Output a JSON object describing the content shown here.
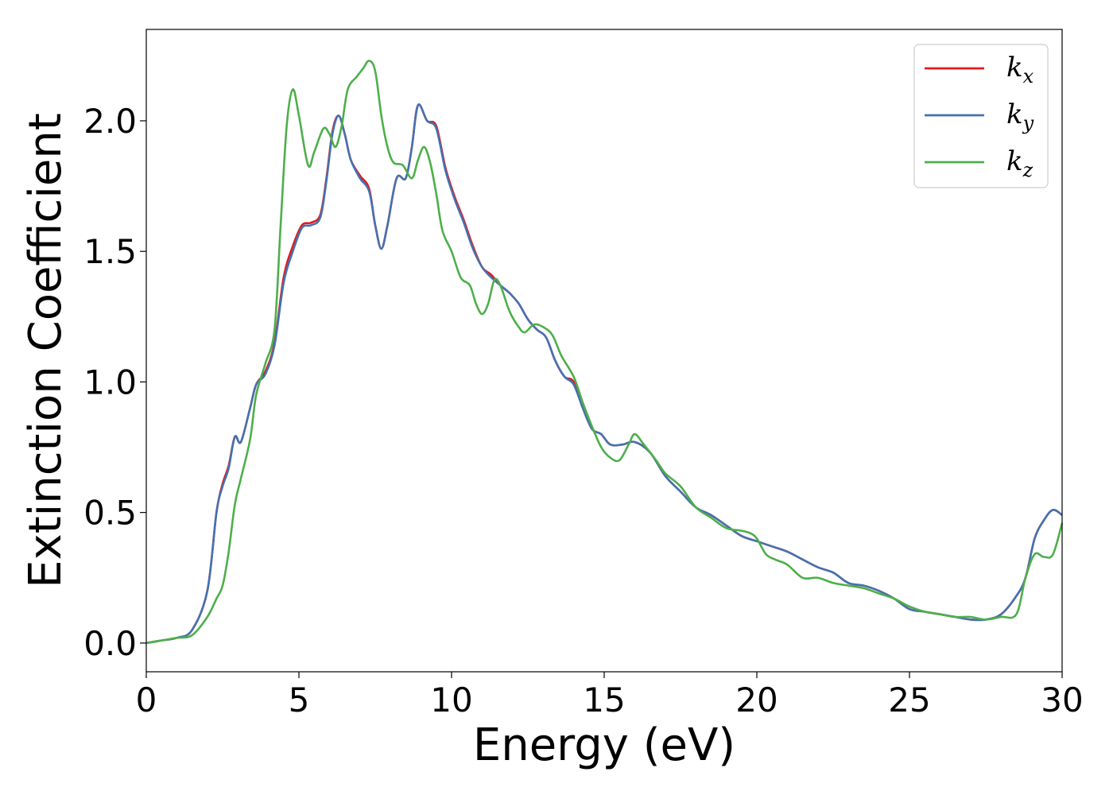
{
  "chart_data": {
    "type": "line",
    "xlabel": "Energy (eV)",
    "ylabel": "Extinction Coefficient",
    "xlim": [
      0,
      30
    ],
    "ylim": [
      -0.11,
      2.35
    ],
    "xticks": [
      0,
      5,
      10,
      15,
      20,
      25,
      30
    ],
    "yticks": [
      0.0,
      0.5,
      1.0,
      1.5,
      2.0
    ],
    "xtick_labels": [
      "0",
      "5",
      "10",
      "15",
      "20",
      "25",
      "30"
    ],
    "ytick_labels": [
      "0.0",
      "0.5",
      "1.0",
      "1.5",
      "2.0"
    ],
    "grid": false,
    "legend_position": "top-right",
    "series": [
      {
        "name": "k_x",
        "label_base": "k",
        "label_sub": "x",
        "color": "#e41a1c",
        "points": [
          [
            0,
            0
          ],
          [
            0.5,
            0.01
          ],
          [
            1,
            0.02
          ],
          [
            1.5,
            0.05
          ],
          [
            2,
            0.2
          ],
          [
            2.3,
            0.5
          ],
          [
            2.5,
            0.61
          ],
          [
            2.7,
            0.68
          ],
          [
            2.9,
            0.79
          ],
          [
            3.1,
            0.77
          ],
          [
            3.4,
            0.9
          ],
          [
            3.6,
            0.99
          ],
          [
            3.9,
            1.04
          ],
          [
            4.2,
            1.15
          ],
          [
            4.5,
            1.4
          ],
          [
            4.8,
            1.52
          ],
          [
            5.1,
            1.6
          ],
          [
            5.4,
            1.61
          ],
          [
            5.7,
            1.64
          ],
          [
            5.9,
            1.78
          ],
          [
            6.1,
            1.96
          ],
          [
            6.3,
            2.02
          ],
          [
            6.5,
            1.95
          ],
          [
            6.7,
            1.85
          ],
          [
            7,
            1.79
          ],
          [
            7.3,
            1.74
          ],
          [
            7.5,
            1.6
          ],
          [
            7.7,
            1.51
          ],
          [
            7.9,
            1.6
          ],
          [
            8.2,
            1.78
          ],
          [
            8.5,
            1.78
          ],
          [
            8.7,
            1.9
          ],
          [
            8.9,
            2.06
          ],
          [
            9.2,
            2.0
          ],
          [
            9.5,
            1.98
          ],
          [
            9.8,
            1.82
          ],
          [
            10.1,
            1.71
          ],
          [
            10.4,
            1.62
          ],
          [
            10.7,
            1.52
          ],
          [
            11,
            1.44
          ],
          [
            11.3,
            1.41
          ],
          [
            11.6,
            1.37
          ],
          [
            11.9,
            1.34
          ],
          [
            12.2,
            1.3
          ],
          [
            12.5,
            1.24
          ],
          [
            12.8,
            1.2
          ],
          [
            13.1,
            1.17
          ],
          [
            13.4,
            1.08
          ],
          [
            13.7,
            1.02
          ],
          [
            14,
            1.0
          ],
          [
            14.3,
            0.9
          ],
          [
            14.6,
            0.82
          ],
          [
            14.9,
            0.8
          ],
          [
            15.2,
            0.76
          ],
          [
            15.6,
            0.76
          ],
          [
            16,
            0.77
          ],
          [
            16.5,
            0.73
          ],
          [
            17,
            0.64
          ],
          [
            17.5,
            0.58
          ],
          [
            18,
            0.52
          ],
          [
            18.5,
            0.49
          ],
          [
            19,
            0.45
          ],
          [
            19.5,
            0.41
          ],
          [
            20,
            0.39
          ],
          [
            20.5,
            0.37
          ],
          [
            21,
            0.35
          ],
          [
            21.5,
            0.32
          ],
          [
            22,
            0.29
          ],
          [
            22.5,
            0.27
          ],
          [
            23,
            0.23
          ],
          [
            23.5,
            0.22
          ],
          [
            24,
            0.2
          ],
          [
            24.5,
            0.17
          ],
          [
            25,
            0.13
          ],
          [
            25.5,
            0.12
          ],
          [
            26,
            0.11
          ],
          [
            26.5,
            0.1
          ],
          [
            27,
            0.09
          ],
          [
            27.5,
            0.09
          ],
          [
            28,
            0.11
          ],
          [
            28.5,
            0.18
          ],
          [
            28.8,
            0.25
          ],
          [
            29.1,
            0.4
          ],
          [
            29.4,
            0.47
          ],
          [
            29.7,
            0.51
          ],
          [
            30,
            0.49
          ]
        ]
      },
      {
        "name": "k_y",
        "label_base": "k",
        "label_sub": "y",
        "color": "#4472b0",
        "points": [
          [
            0,
            0
          ],
          [
            0.5,
            0.01
          ],
          [
            1,
            0.02
          ],
          [
            1.5,
            0.05
          ],
          [
            2,
            0.2
          ],
          [
            2.3,
            0.5
          ],
          [
            2.5,
            0.6
          ],
          [
            2.7,
            0.67
          ],
          [
            2.9,
            0.79
          ],
          [
            3.1,
            0.77
          ],
          [
            3.4,
            0.9
          ],
          [
            3.6,
            0.99
          ],
          [
            3.9,
            1.03
          ],
          [
            4.2,
            1.14
          ],
          [
            4.5,
            1.38
          ],
          [
            4.8,
            1.5
          ],
          [
            5.1,
            1.59
          ],
          [
            5.4,
            1.6
          ],
          [
            5.7,
            1.63
          ],
          [
            5.9,
            1.77
          ],
          [
            6.1,
            1.95
          ],
          [
            6.3,
            2.02
          ],
          [
            6.5,
            1.95
          ],
          [
            6.7,
            1.85
          ],
          [
            7,
            1.78
          ],
          [
            7.3,
            1.73
          ],
          [
            7.5,
            1.6
          ],
          [
            7.7,
            1.51
          ],
          [
            7.9,
            1.6
          ],
          [
            8.2,
            1.78
          ],
          [
            8.5,
            1.78
          ],
          [
            8.7,
            1.9
          ],
          [
            8.9,
            2.06
          ],
          [
            9.2,
            2.0
          ],
          [
            9.5,
            1.97
          ],
          [
            9.8,
            1.81
          ],
          [
            10.1,
            1.7
          ],
          [
            10.4,
            1.61
          ],
          [
            10.7,
            1.51
          ],
          [
            11,
            1.44
          ],
          [
            11.3,
            1.4
          ],
          [
            11.6,
            1.37
          ],
          [
            11.9,
            1.34
          ],
          [
            12.2,
            1.3
          ],
          [
            12.5,
            1.24
          ],
          [
            12.8,
            1.2
          ],
          [
            13.1,
            1.17
          ],
          [
            13.4,
            1.08
          ],
          [
            13.7,
            1.02
          ],
          [
            14,
            0.99
          ],
          [
            14.3,
            0.9
          ],
          [
            14.6,
            0.82
          ],
          [
            14.9,
            0.8
          ],
          [
            15.2,
            0.76
          ],
          [
            15.6,
            0.76
          ],
          [
            16,
            0.77
          ],
          [
            16.5,
            0.73
          ],
          [
            17,
            0.64
          ],
          [
            17.5,
            0.58
          ],
          [
            18,
            0.52
          ],
          [
            18.5,
            0.49
          ],
          [
            19,
            0.45
          ],
          [
            19.5,
            0.41
          ],
          [
            20,
            0.39
          ],
          [
            20.5,
            0.37
          ],
          [
            21,
            0.35
          ],
          [
            21.5,
            0.32
          ],
          [
            22,
            0.29
          ],
          [
            22.5,
            0.27
          ],
          [
            23,
            0.23
          ],
          [
            23.5,
            0.22
          ],
          [
            24,
            0.2
          ],
          [
            24.5,
            0.17
          ],
          [
            25,
            0.13
          ],
          [
            25.5,
            0.12
          ],
          [
            26,
            0.11
          ],
          [
            26.5,
            0.1
          ],
          [
            27,
            0.09
          ],
          [
            27.5,
            0.09
          ],
          [
            28,
            0.11
          ],
          [
            28.5,
            0.18
          ],
          [
            28.8,
            0.25
          ],
          [
            29.1,
            0.4
          ],
          [
            29.4,
            0.47
          ],
          [
            29.7,
            0.51
          ],
          [
            30,
            0.49
          ]
        ]
      },
      {
        "name": "k_z",
        "label_base": "k",
        "label_sub": "z",
        "color": "#4daf4a",
        "points": [
          [
            0,
            0
          ],
          [
            0.5,
            0.01
          ],
          [
            1,
            0.02
          ],
          [
            1.5,
            0.03
          ],
          [
            2,
            0.1
          ],
          [
            2.3,
            0.17
          ],
          [
            2.5,
            0.22
          ],
          [
            2.7,
            0.35
          ],
          [
            2.9,
            0.53
          ],
          [
            3.1,
            0.63
          ],
          [
            3.4,
            0.78
          ],
          [
            3.6,
            0.95
          ],
          [
            3.9,
            1.07
          ],
          [
            4.2,
            1.2
          ],
          [
            4.4,
            1.6
          ],
          [
            4.6,
            1.98
          ],
          [
            4.8,
            2.12
          ],
          [
            5,
            2.02
          ],
          [
            5.3,
            1.83
          ],
          [
            5.5,
            1.88
          ],
          [
            5.8,
            1.97
          ],
          [
            6,
            1.95
          ],
          [
            6.2,
            1.9
          ],
          [
            6.4,
            1.98
          ],
          [
            6.6,
            2.12
          ],
          [
            6.9,
            2.17
          ],
          [
            7.1,
            2.2
          ],
          [
            7.3,
            2.23
          ],
          [
            7.5,
            2.19
          ],
          [
            7.7,
            2.02
          ],
          [
            7.9,
            1.9
          ],
          [
            8.1,
            1.84
          ],
          [
            8.4,
            1.83
          ],
          [
            8.7,
            1.78
          ],
          [
            8.9,
            1.85
          ],
          [
            9.1,
            1.9
          ],
          [
            9.3,
            1.84
          ],
          [
            9.5,
            1.72
          ],
          [
            9.7,
            1.58
          ],
          [
            10,
            1.5
          ],
          [
            10.3,
            1.4
          ],
          [
            10.6,
            1.37
          ],
          [
            10.8,
            1.3
          ],
          [
            11,
            1.26
          ],
          [
            11.2,
            1.3
          ],
          [
            11.4,
            1.39
          ],
          [
            11.6,
            1.37
          ],
          [
            11.9,
            1.27
          ],
          [
            12.2,
            1.21
          ],
          [
            12.4,
            1.19
          ],
          [
            12.7,
            1.22
          ],
          [
            13,
            1.21
          ],
          [
            13.3,
            1.18
          ],
          [
            13.6,
            1.1
          ],
          [
            14,
            1.02
          ],
          [
            14.3,
            0.92
          ],
          [
            14.6,
            0.83
          ],
          [
            14.9,
            0.75
          ],
          [
            15.2,
            0.71
          ],
          [
            15.5,
            0.7
          ],
          [
            15.8,
            0.76
          ],
          [
            16,
            0.8
          ],
          [
            16.3,
            0.76
          ],
          [
            16.7,
            0.7
          ],
          [
            17,
            0.65
          ],
          [
            17.5,
            0.6
          ],
          [
            18,
            0.52
          ],
          [
            18.5,
            0.48
          ],
          [
            19,
            0.44
          ],
          [
            19.5,
            0.43
          ],
          [
            19.8,
            0.42
          ],
          [
            20,
            0.4
          ],
          [
            20.3,
            0.34
          ],
          [
            20.6,
            0.32
          ],
          [
            21,
            0.3
          ],
          [
            21.5,
            0.25
          ],
          [
            22,
            0.25
          ],
          [
            22.5,
            0.23
          ],
          [
            23,
            0.22
          ],
          [
            23.5,
            0.21
          ],
          [
            24,
            0.19
          ],
          [
            24.5,
            0.17
          ],
          [
            25,
            0.14
          ],
          [
            25.5,
            0.12
          ],
          [
            26,
            0.11
          ],
          [
            26.5,
            0.1
          ],
          [
            27,
            0.1
          ],
          [
            27.5,
            0.09
          ],
          [
            28,
            0.1
          ],
          [
            28.5,
            0.11
          ],
          [
            28.8,
            0.25
          ],
          [
            29.1,
            0.34
          ],
          [
            29.4,
            0.33
          ],
          [
            29.7,
            0.34
          ],
          [
            30,
            0.46
          ]
        ]
      }
    ]
  }
}
